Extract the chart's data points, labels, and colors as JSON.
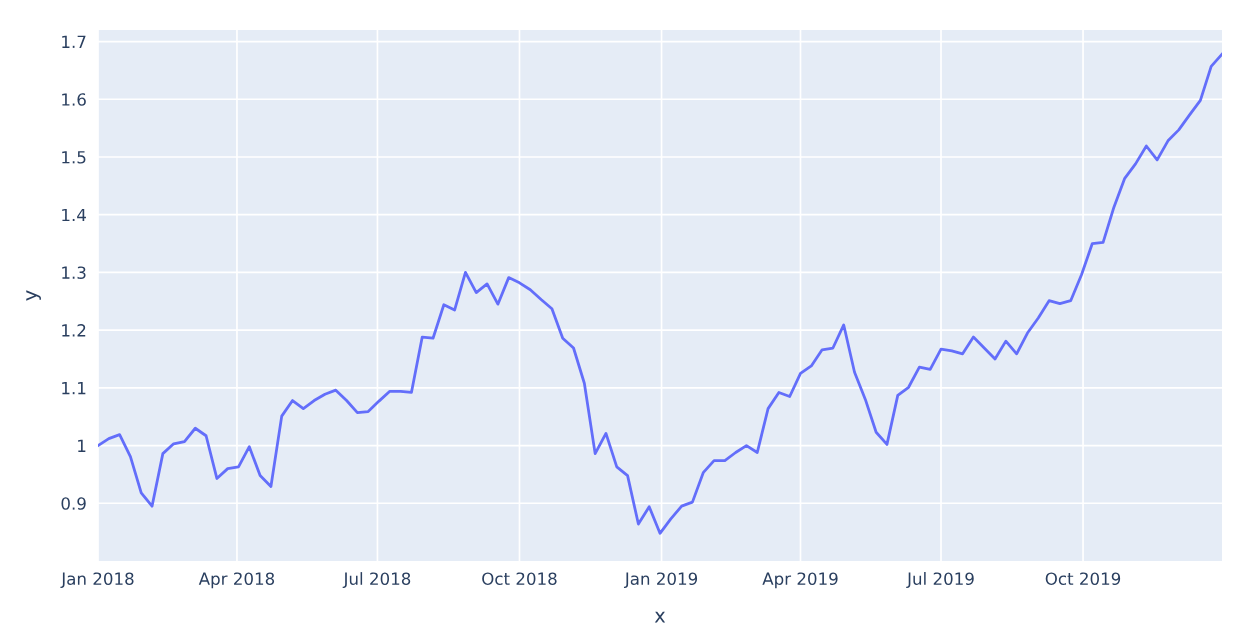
{
  "chart_data": {
    "type": "line",
    "xlabel": "x",
    "ylabel": "y",
    "x": [
      "2018-01-01",
      "2018-01-08",
      "2018-01-15",
      "2018-01-22",
      "2018-01-29",
      "2018-02-05",
      "2018-02-12",
      "2018-02-19",
      "2018-02-26",
      "2018-03-05",
      "2018-03-12",
      "2018-03-19",
      "2018-03-26",
      "2018-04-02",
      "2018-04-09",
      "2018-04-16",
      "2018-04-23",
      "2018-04-30",
      "2018-05-07",
      "2018-05-14",
      "2018-05-21",
      "2018-05-28",
      "2018-06-04",
      "2018-06-11",
      "2018-06-18",
      "2018-06-25",
      "2018-07-02",
      "2018-07-09",
      "2018-07-16",
      "2018-07-23",
      "2018-07-30",
      "2018-08-06",
      "2018-08-13",
      "2018-08-20",
      "2018-08-27",
      "2018-09-03",
      "2018-09-10",
      "2018-09-17",
      "2018-09-24",
      "2018-10-01",
      "2018-10-08",
      "2018-10-15",
      "2018-10-22",
      "2018-10-29",
      "2018-11-05",
      "2018-11-12",
      "2018-11-19",
      "2018-11-26",
      "2018-12-03",
      "2018-12-10",
      "2018-12-17",
      "2018-12-24",
      "2018-12-31",
      "2019-01-07",
      "2019-01-14",
      "2019-01-21",
      "2019-01-28",
      "2019-02-04",
      "2019-02-11",
      "2019-02-18",
      "2019-02-25",
      "2019-03-04",
      "2019-03-11",
      "2019-03-18",
      "2019-03-25",
      "2019-04-01",
      "2019-04-08",
      "2019-04-15",
      "2019-04-22",
      "2019-04-29",
      "2019-05-06",
      "2019-05-13",
      "2019-05-20",
      "2019-05-27",
      "2019-06-03",
      "2019-06-10",
      "2019-06-17",
      "2019-06-24",
      "2019-07-01",
      "2019-07-08",
      "2019-07-15",
      "2019-07-22",
      "2019-07-29",
      "2019-08-05",
      "2019-08-12",
      "2019-08-19",
      "2019-08-26",
      "2019-09-02",
      "2019-09-09",
      "2019-09-16",
      "2019-09-23",
      "2019-09-30",
      "2019-10-07",
      "2019-10-14",
      "2019-10-21",
      "2019-10-28",
      "2019-11-04",
      "2019-11-11",
      "2019-11-18",
      "2019-11-25",
      "2019-12-02",
      "2019-12-09",
      "2019-12-16",
      "2019-12-23",
      "2019-12-30"
    ],
    "series": [
      {
        "color": "#636efa",
        "values": [
          1.0,
          1.012,
          1.019,
          0.981,
          0.918,
          0.895,
          0.986,
          1.003,
          1.007,
          1.03,
          1.017,
          0.943,
          0.96,
          0.963,
          0.998,
          0.948,
          0.929,
          1.051,
          1.078,
          1.064,
          1.078,
          1.089,
          1.096,
          1.078,
          1.057,
          1.059,
          1.077,
          1.094,
          1.094,
          1.092,
          1.188,
          1.186,
          1.244,
          1.235,
          1.3,
          1.265,
          1.28,
          1.245,
          1.291,
          1.282,
          1.27,
          1.253,
          1.237,
          1.186,
          1.169,
          1.108,
          0.986,
          1.021,
          0.963,
          0.948,
          0.864,
          0.894,
          0.848,
          0.873,
          0.895,
          0.902,
          0.953,
          0.974,
          0.974,
          0.988,
          1.0,
          0.988,
          1.064,
          1.092,
          1.085,
          1.125,
          1.138,
          1.166,
          1.169,
          1.209,
          1.127,
          1.08,
          1.023,
          1.002,
          1.087,
          1.101,
          1.136,
          1.132,
          1.167,
          1.164,
          1.159,
          1.188,
          1.169,
          1.15,
          1.181,
          1.159,
          1.195,
          1.221,
          1.251,
          1.246,
          1.251,
          1.296,
          1.35,
          1.352,
          1.413,
          1.463,
          1.488,
          1.519,
          1.495,
          1.528,
          1.547,
          1.573,
          1.598,
          1.657,
          1.678
        ]
      }
    ],
    "xlim": [
      "2018-01-01",
      "2019-12-30"
    ],
    "xticks": [
      {
        "value": "2018-01-01",
        "label": "Jan 2018"
      },
      {
        "value": "2018-04-01",
        "label": "Apr 2018"
      },
      {
        "value": "2018-07-01",
        "label": "Jul 2018"
      },
      {
        "value": "2018-10-01",
        "label": "Oct 2018"
      },
      {
        "value": "2019-01-01",
        "label": "Jan 2019"
      },
      {
        "value": "2019-04-01",
        "label": "Apr 2019"
      },
      {
        "value": "2019-07-01",
        "label": "Jul 2019"
      },
      {
        "value": "2019-10-01",
        "label": "Oct 2019"
      }
    ],
    "ylim": [
      0.8,
      1.72
    ],
    "yticks": [
      0.9,
      {
        "value": 1.0,
        "label": "1"
      },
      1.1,
      1.2,
      1.3,
      1.4,
      1.5,
      1.6,
      1.7
    ],
    "grid": true,
    "marker": "none",
    "line_style": "solid"
  }
}
